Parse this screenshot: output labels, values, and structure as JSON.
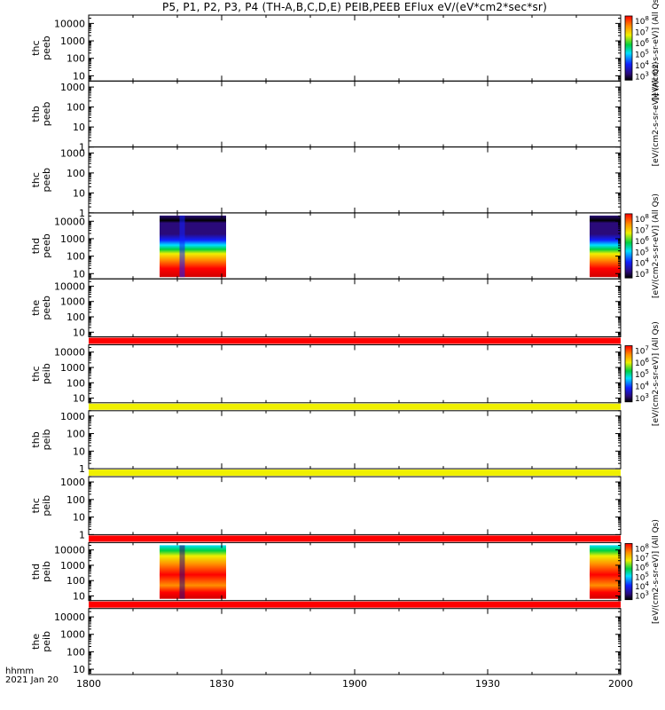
{
  "title": "P5, P1, P2, P3, P4 (TH-A,B,C,D,E) PEIB,PEEB EFlux eV/(eV*cm2*sec*sr)",
  "time_header": {
    "format": "hhmm",
    "date": "2021 Jan 20"
  },
  "colors": {
    "low": "#2a0a7a",
    "mid_blue": "#1020ff",
    "cyan": "#00e0ff",
    "green": "#00d040",
    "yellow": "#f0f000",
    "orange": "#ff9000",
    "red": "#ff0000",
    "dark_red": "#d00000",
    "black": "#000000"
  },
  "chart_data": {
    "type": "heatmap",
    "x_axis": {
      "ticks": [
        "1800",
        "1830",
        "1900",
        "1930",
        "2000"
      ],
      "range": [
        "18:00",
        "20:00"
      ]
    },
    "panels": [
      {
        "label": [
          "thc",
          "peeb"
        ],
        "y_ticks": [
          "10000",
          "1000",
          "100",
          "10"
        ],
        "y_range": [
          5,
          30000
        ],
        "log": true,
        "data_blocks": [],
        "flag_bar": null,
        "colorbar": {
          "ticks": [
            "10^8",
            "10^7",
            "10^6",
            "10^5",
            "10^4",
            "10^3"
          ],
          "label": "[eV/(cm2-s-sr-eV)] (All Qs)"
        }
      },
      {
        "label": [
          "thb",
          "peeb"
        ],
        "y_ticks": [
          "1000",
          "100",
          "10",
          "1"
        ],
        "y_range": [
          1,
          2000
        ],
        "log": true,
        "data_blocks": [],
        "flag_bar": null,
        "colorbar": {
          "ticks": [],
          "label": "[eV/(cm2-s-sr-eV)] (All Qs)"
        }
      },
      {
        "label": [
          "thc",
          "peeb"
        ],
        "y_ticks": [
          "1000",
          "100",
          "10",
          "1"
        ],
        "y_range": [
          1,
          2000
        ],
        "log": true,
        "data_blocks": [],
        "flag_bar": null,
        "colorbar": {
          "ticks": [],
          "label": ""
        }
      },
      {
        "label": [
          "thd",
          "peeb"
        ],
        "y_ticks": [
          "10000",
          "1000",
          "100",
          "10"
        ],
        "y_range": [
          5,
          30000
        ],
        "log": true,
        "data_blocks": [
          {
            "start": "18:16",
            "end": "18:31",
            "profile": "electron"
          },
          {
            "start": "19:53",
            "end": "20:00",
            "profile": "electron"
          }
        ],
        "flag_bar": null,
        "colorbar": {
          "ticks": [
            "10^8",
            "10^7",
            "10^6",
            "10^5",
            "10^4",
            "10^3"
          ],
          "label": "[eV/(cm2-s-sr-eV)] (All Qs)"
        }
      },
      {
        "label": [
          "the",
          "peeb"
        ],
        "y_ticks": [
          "10000",
          "1000",
          "100",
          "10"
        ],
        "y_range": [
          5,
          30000
        ],
        "log": true,
        "data_blocks": [],
        "flag_bar": "red",
        "colorbar": {
          "ticks": [],
          "label": ""
        }
      },
      {
        "label": [
          "thc",
          "peib"
        ],
        "y_ticks": [
          "10000",
          "1000",
          "100",
          "10"
        ],
        "y_range": [
          5,
          30000
        ],
        "log": true,
        "data_blocks": [],
        "flag_bar": "yellow",
        "colorbar": {
          "ticks": [
            "10^7",
            "10^6",
            "10^5",
            "10^4",
            "10^3"
          ],
          "label": "[eV/(cm2-s-sr-eV)] (All Qs)"
        }
      },
      {
        "label": [
          "thb",
          "peib"
        ],
        "y_ticks": [
          "1000",
          "100",
          "10",
          "1"
        ],
        "y_range": [
          1,
          2000
        ],
        "log": true,
        "data_blocks": [],
        "flag_bar": "yellow",
        "colorbar": {
          "ticks": [],
          "label": ""
        }
      },
      {
        "label": [
          "thc",
          "peib"
        ],
        "y_ticks": [
          "1000",
          "100",
          "10",
          "1"
        ],
        "y_range": [
          1,
          2000
        ],
        "log": true,
        "data_blocks": [],
        "flag_bar": "red",
        "colorbar": {
          "ticks": [],
          "label": ""
        }
      },
      {
        "label": [
          "thd",
          "peib"
        ],
        "y_ticks": [
          "10000",
          "1000",
          "100",
          "10"
        ],
        "y_range": [
          5,
          30000
        ],
        "log": true,
        "data_blocks": [
          {
            "start": "18:16",
            "end": "18:31",
            "profile": "ion"
          },
          {
            "start": "19:53",
            "end": "20:00",
            "profile": "ion"
          }
        ],
        "flag_bar": "red",
        "colorbar": {
          "ticks": [
            "10^8",
            "10^7",
            "10^6",
            "10^5",
            "10^4",
            "10^3"
          ],
          "label": "[eV/(cm2-s-sr-eV)] (All Qs)"
        }
      },
      {
        "label": [
          "the",
          "peib"
        ],
        "y_ticks": [
          "10000",
          "1000",
          "100",
          "10"
        ],
        "y_range": [
          5,
          30000
        ],
        "log": true,
        "data_blocks": [],
        "flag_bar": null,
        "colorbar": {
          "ticks": [],
          "label": ""
        }
      }
    ]
  }
}
